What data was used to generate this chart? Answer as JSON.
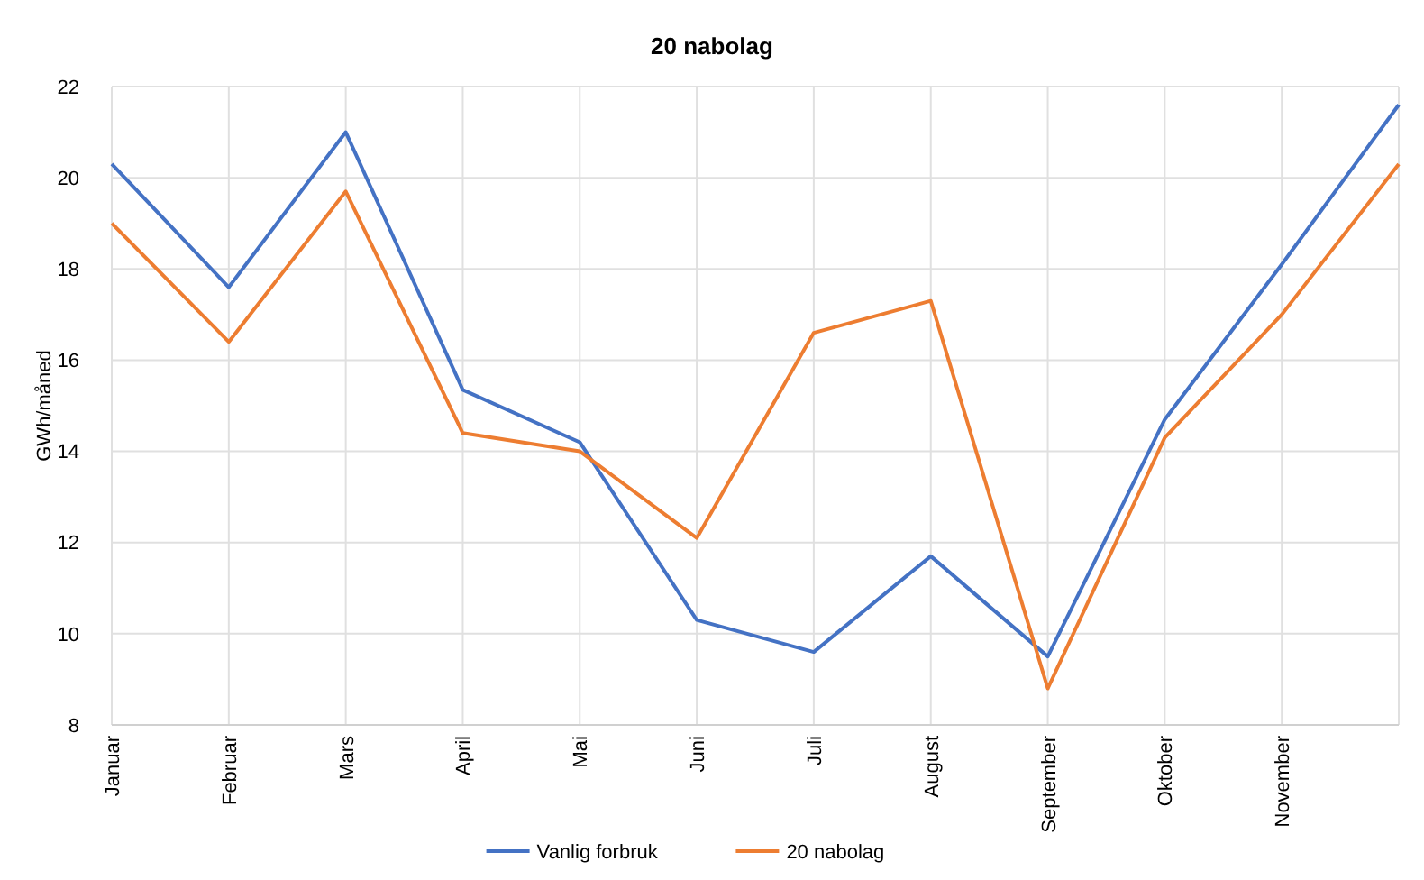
{
  "chart_data": {
    "type": "line",
    "title": "20 nabolag",
    "ylabel": "GWh/måned",
    "categories": [
      "Januar",
      "Februar",
      "Mars",
      "April",
      "Mai",
      "Juni",
      "Juli",
      "August",
      "September",
      "Oktober",
      "November",
      null
    ],
    "series": [
      {
        "name": "Vanlig forbruk",
        "color": "#4472c4",
        "values": [
          20.3,
          17.6,
          21.0,
          15.35,
          14.2,
          10.3,
          9.6,
          11.7,
          9.5,
          14.7,
          18.1,
          21.6
        ]
      },
      {
        "name": "20 nabolag",
        "color": "#ed7d31",
        "values": [
          19.0,
          16.4,
          19.7,
          14.4,
          14.0,
          12.1,
          16.6,
          17.3,
          8.8,
          14.3,
          17.0,
          20.3
        ]
      }
    ],
    "ylim": [
      8,
      22
    ],
    "yticks": [
      8,
      10,
      12,
      14,
      16,
      18,
      20,
      22
    ],
    "grid": true,
    "legend": "bottom",
    "marker": "none",
    "line_style": "solid"
  }
}
